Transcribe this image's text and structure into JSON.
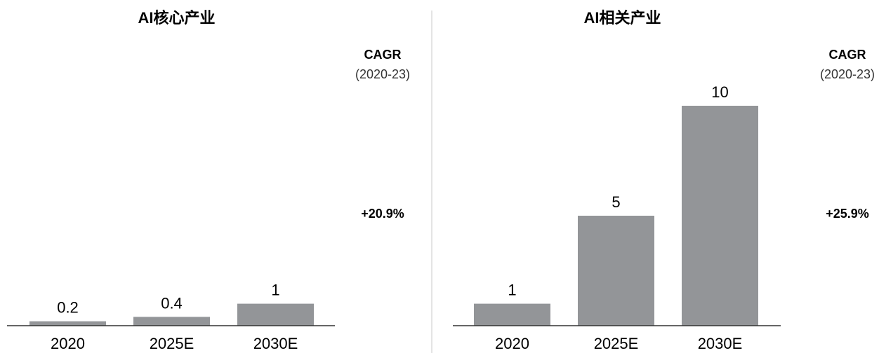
{
  "chart_data": [
    {
      "type": "bar",
      "title": "AI核心产业",
      "categories": [
        "2020",
        "2025E",
        "2030E"
      ],
      "values": [
        0.2,
        0.4,
        1
      ],
      "color": "#939598",
      "cagr_label": "CAGR",
      "cagr_period": "(2020-23)",
      "cagr_value": "+20.9%"
    },
    {
      "type": "bar",
      "title": "AI相关产业",
      "categories": [
        "2020",
        "2025E",
        "2030E"
      ],
      "values": [
        1,
        5,
        10
      ],
      "color": "#939598",
      "cagr_label": "CAGR",
      "cagr_period": "(2020-23)",
      "cagr_value": "+25.9%"
    }
  ]
}
